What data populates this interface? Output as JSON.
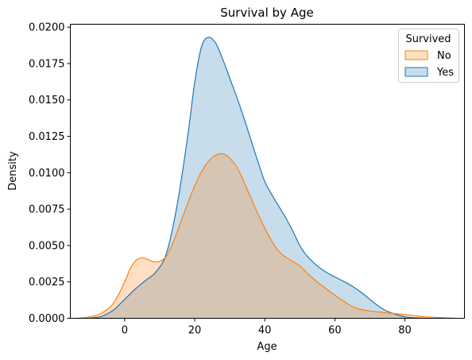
{
  "chart_data": {
    "type": "area",
    "title": "Survival by Age",
    "xlabel": "Age",
    "ylabel": "Density",
    "xlim": [
      -15.5,
      97
    ],
    "ylim": [
      0,
      0.0202
    ],
    "x_ticks": [
      0,
      20,
      40,
      60,
      80
    ],
    "y_ticks": [
      0.0,
      0.0025,
      0.005,
      0.0075,
      0.01,
      0.0125,
      0.015,
      0.0175,
      0.02
    ],
    "y_tick_labels": [
      "0.0000",
      "0.0025",
      "0.0050",
      "0.0075",
      "0.0100",
      "0.0125",
      "0.0150",
      "0.0175",
      "0.0200"
    ],
    "grid": false,
    "legend": {
      "title": "Survived",
      "placement": "top-right"
    },
    "series": [
      {
        "name": "Yes",
        "color": "#1f77b4",
        "points": [
          [
            -10.5,
            0.0
          ],
          [
            -7,
            0.0001
          ],
          [
            -5,
            0.0003
          ],
          [
            -3,
            0.0006
          ],
          [
            0,
            0.0013
          ],
          [
            3,
            0.002
          ],
          [
            6,
            0.0026
          ],
          [
            9,
            0.0032
          ],
          [
            12,
            0.0045
          ],
          [
            15,
            0.0078
          ],
          [
            18,
            0.0125
          ],
          [
            20,
            0.0162
          ],
          [
            22,
            0.0187
          ],
          [
            24,
            0.0193
          ],
          [
            26,
            0.0189
          ],
          [
            28,
            0.0178
          ],
          [
            30,
            0.0165
          ],
          [
            32,
            0.0152
          ],
          [
            34,
            0.0138
          ],
          [
            36,
            0.0123
          ],
          [
            38,
            0.0108
          ],
          [
            40,
            0.0094
          ],
          [
            42,
            0.0085
          ],
          [
            44,
            0.0077
          ],
          [
            46,
            0.0069
          ],
          [
            48,
            0.006
          ],
          [
            50,
            0.005
          ],
          [
            52,
            0.0043
          ],
          [
            55,
            0.0036
          ],
          [
            58,
            0.0031
          ],
          [
            62,
            0.0026
          ],
          [
            65,
            0.0022
          ],
          [
            68,
            0.0017
          ],
          [
            71,
            0.0011
          ],
          [
            74,
            0.0006
          ],
          [
            77,
            0.0003
          ],
          [
            80,
            0.0001
          ],
          [
            83,
            3e-05
          ],
          [
            86.5,
            0.0
          ]
        ]
      },
      {
        "name": "No",
        "color": "#ff7f0e",
        "points": [
          [
            -13.5,
            0.0
          ],
          [
            -10,
            0.0001
          ],
          [
            -7,
            0.0003
          ],
          [
            -4,
            0.0008
          ],
          [
            -2,
            0.0015
          ],
          [
            0,
            0.0025
          ],
          [
            2,
            0.0036
          ],
          [
            4,
            0.0041
          ],
          [
            6,
            0.0041
          ],
          [
            8,
            0.0039
          ],
          [
            10,
            0.0039
          ],
          [
            12,
            0.0043
          ],
          [
            14,
            0.0053
          ],
          [
            16,
            0.0066
          ],
          [
            18,
            0.0079
          ],
          [
            20,
            0.0091
          ],
          [
            22,
            0.0101
          ],
          [
            24,
            0.0108
          ],
          [
            26,
            0.0112
          ],
          [
            28,
            0.0113
          ],
          [
            30,
            0.011
          ],
          [
            32,
            0.0104
          ],
          [
            34,
            0.0094
          ],
          [
            36,
            0.0083
          ],
          [
            38,
            0.0072
          ],
          [
            40,
            0.0062
          ],
          [
            42,
            0.0053
          ],
          [
            44,
            0.0046
          ],
          [
            46,
            0.0042
          ],
          [
            48,
            0.0039
          ],
          [
            50,
            0.0036
          ],
          [
            53,
            0.0029
          ],
          [
            56,
            0.0023
          ],
          [
            60,
            0.0016
          ],
          [
            63,
            0.0011
          ],
          [
            66,
            0.0007
          ],
          [
            70,
            0.0005
          ],
          [
            74,
            0.0004
          ],
          [
            78,
            0.0003
          ],
          [
            82,
            0.0002
          ],
          [
            86,
            0.0001
          ],
          [
            90,
            5e-05
          ],
          [
            94.5,
            0.0
          ]
        ]
      }
    ]
  }
}
